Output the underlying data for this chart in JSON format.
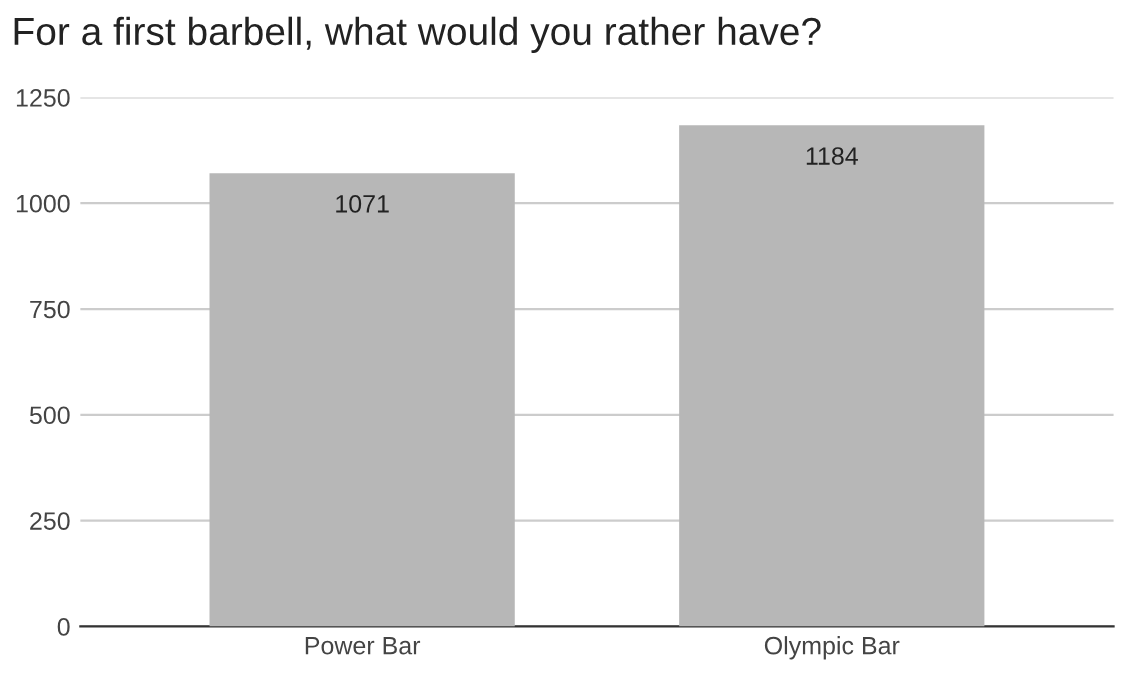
{
  "chart_data": {
    "type": "bar",
    "title": "For a first barbell, what would you rather have?",
    "categories": [
      "Power Bar",
      "Olympic Bar"
    ],
    "values": [
      1071,
      1184
    ],
    "color": "#b7b7b7",
    "ylim": [
      0,
      1250
    ],
    "yticks": [
      0,
      250,
      500,
      750,
      1000,
      1250
    ],
    "grid": "y",
    "data_labels": true
  }
}
